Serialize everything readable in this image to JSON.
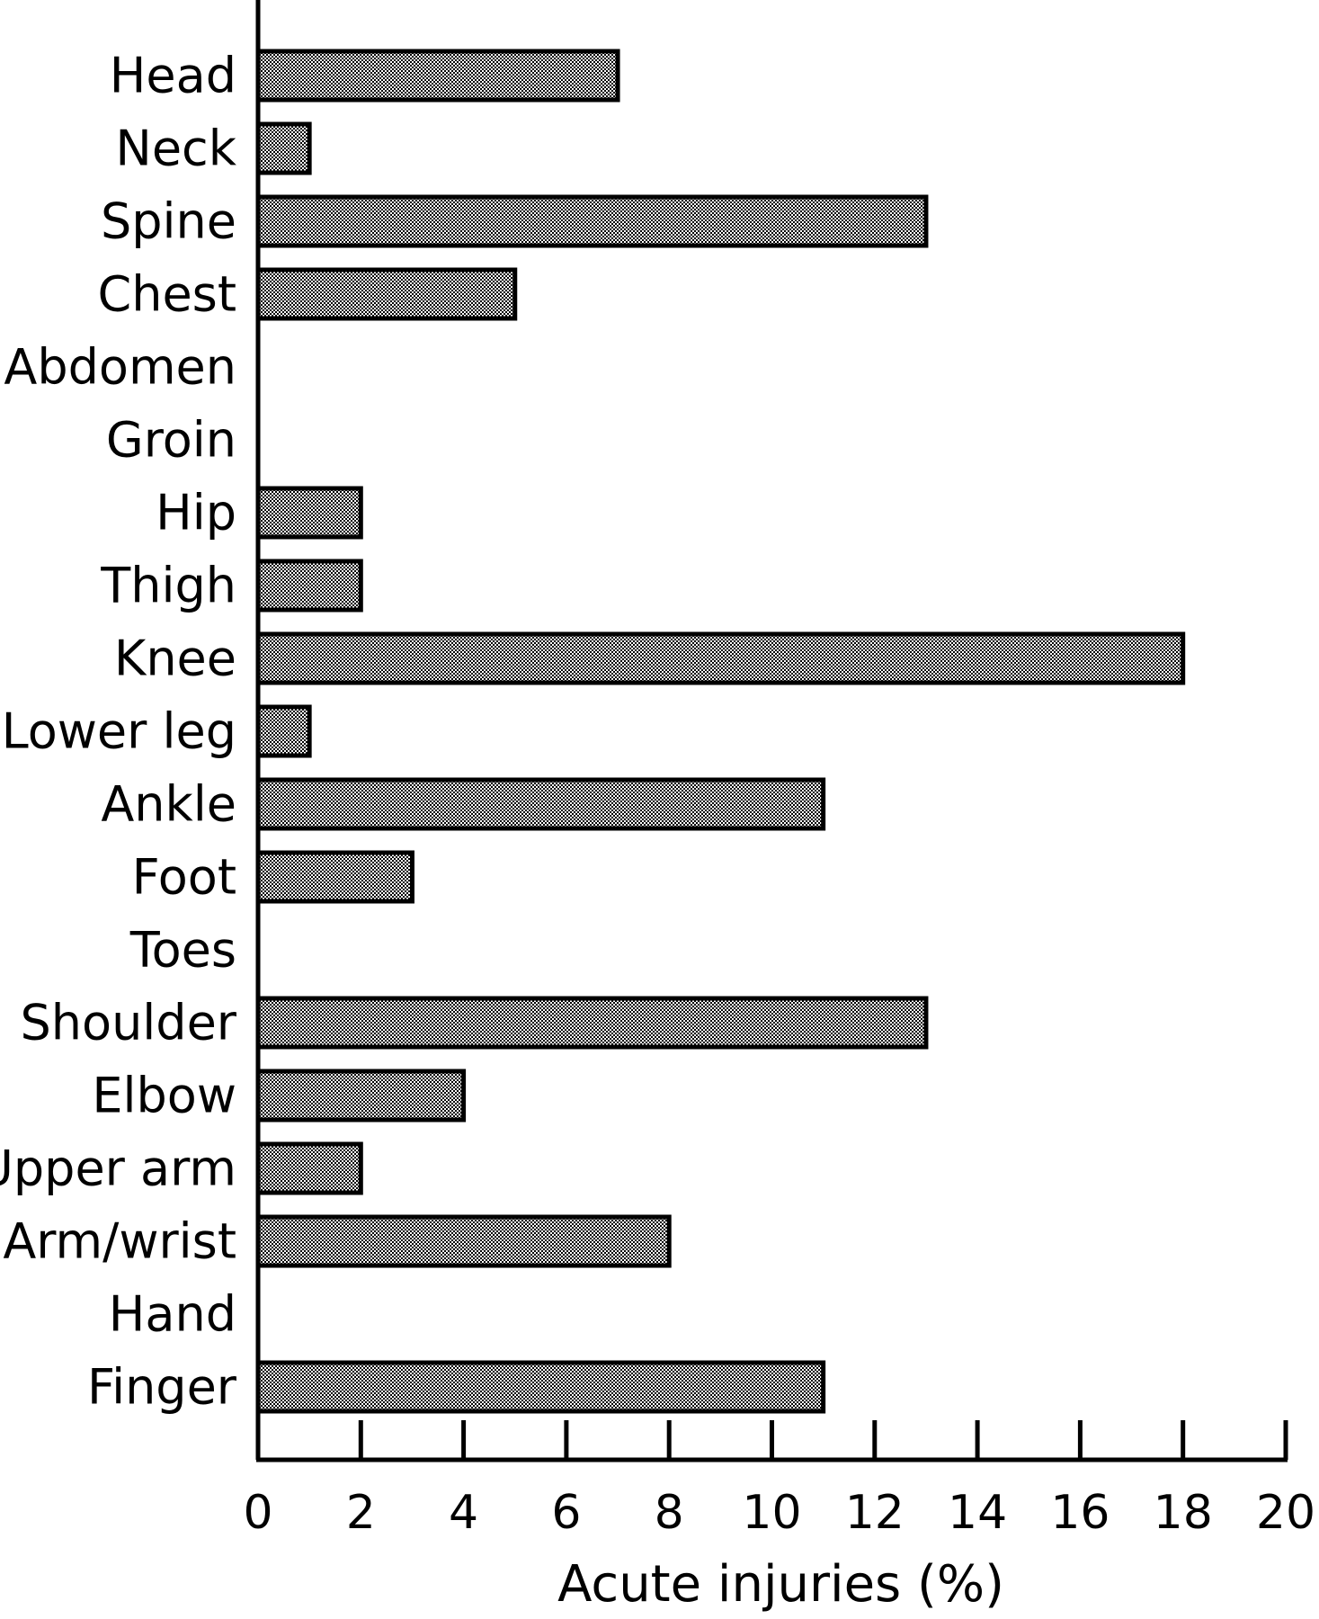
{
  "chart_data": {
    "type": "bar",
    "orientation": "horizontal",
    "categories": [
      "Head",
      "Neck",
      "Spine",
      "Chest",
      "Abdomen",
      "Groin",
      "Hip",
      "Thigh",
      "Knee",
      "Lower leg",
      "Ankle",
      "Foot",
      "Toes",
      "Shoulder",
      "Elbow",
      "Upper arm",
      "Arm/wrist",
      "Hand",
      "Finger"
    ],
    "values": [
      7,
      1,
      13,
      5,
      0,
      0,
      2,
      2,
      18,
      1,
      11,
      3,
      0,
      13,
      4,
      2,
      8,
      0,
      11
    ],
    "title": "",
    "xlabel": "Acute injuries (%)",
    "ylabel": "",
    "xlim": [
      0,
      20
    ],
    "xticks": [
      0,
      2,
      4,
      6,
      8,
      10,
      12,
      14,
      16,
      18,
      20
    ],
    "grid": false,
    "bar_fill": "#000000",
    "bar_stroke": "#000000"
  }
}
